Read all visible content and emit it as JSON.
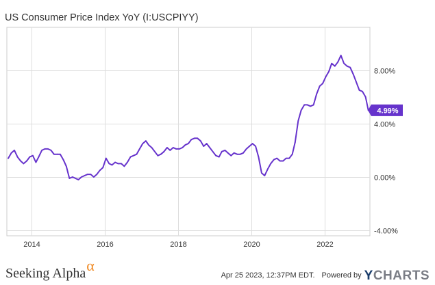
{
  "chart_data": {
    "type": "line",
    "title": "US Consumer Price Index YoY (I:USCPIYY)",
    "xlabel": "",
    "ylabel": "",
    "xlim": [
      "2013-05-01",
      "2023-03-31"
    ],
    "ylim": [
      -4.4,
      11.2
    ],
    "x_ticks": [
      "2014",
      "2016",
      "2018",
      "2020",
      "2022"
    ],
    "y_ticks": [
      {
        "value": -4,
        "label": "-4.00%"
      },
      {
        "value": 0,
        "label": "0.00%"
      },
      {
        "value": 4,
        "label": "4.00%"
      },
      {
        "value": 8,
        "label": "8.00%"
      }
    ],
    "grid": true,
    "line_color": "#6633cc",
    "last_value_label": "4.99%",
    "series": [
      {
        "name": "",
        "x": [
          "2013-05",
          "2013-06",
          "2013-07",
          "2013-08",
          "2013-09",
          "2013-10",
          "2013-11",
          "2013-12",
          "2014-01",
          "2014-02",
          "2014-03",
          "2014-04",
          "2014-05",
          "2014-06",
          "2014-07",
          "2014-08",
          "2014-09",
          "2014-10",
          "2014-11",
          "2014-12",
          "2015-01",
          "2015-02",
          "2015-03",
          "2015-04",
          "2015-05",
          "2015-06",
          "2015-07",
          "2015-08",
          "2015-09",
          "2015-10",
          "2015-11",
          "2015-12",
          "2016-01",
          "2016-02",
          "2016-03",
          "2016-04",
          "2016-05",
          "2016-06",
          "2016-07",
          "2016-08",
          "2016-09",
          "2016-10",
          "2016-11",
          "2016-12",
          "2017-01",
          "2017-02",
          "2017-03",
          "2017-04",
          "2017-05",
          "2017-06",
          "2017-07",
          "2017-08",
          "2017-09",
          "2017-10",
          "2017-11",
          "2017-12",
          "2018-01",
          "2018-02",
          "2018-03",
          "2018-04",
          "2018-05",
          "2018-06",
          "2018-07",
          "2018-08",
          "2018-09",
          "2018-10",
          "2018-11",
          "2018-12",
          "2019-01",
          "2019-02",
          "2019-03",
          "2019-04",
          "2019-05",
          "2019-06",
          "2019-07",
          "2019-08",
          "2019-09",
          "2019-10",
          "2019-11",
          "2019-12",
          "2020-01",
          "2020-02",
          "2020-03",
          "2020-04",
          "2020-05",
          "2020-06",
          "2020-07",
          "2020-08",
          "2020-09",
          "2020-10",
          "2020-11",
          "2020-12",
          "2021-01",
          "2021-02",
          "2021-03",
          "2021-04",
          "2021-05",
          "2021-06",
          "2021-07",
          "2021-08",
          "2021-09",
          "2021-10",
          "2021-11",
          "2021-12",
          "2022-01",
          "2022-02",
          "2022-03",
          "2022-04",
          "2022-05",
          "2022-06",
          "2022-07",
          "2022-08",
          "2022-09",
          "2022-10",
          "2022-11",
          "2022-12",
          "2023-01",
          "2023-02",
          "2023-03"
        ],
        "values": [
          1.4,
          1.8,
          2.0,
          1.5,
          1.2,
          1.0,
          1.2,
          1.5,
          1.6,
          1.1,
          1.5,
          2.0,
          2.1,
          2.1,
          2.0,
          1.7,
          1.7,
          1.7,
          1.3,
          0.8,
          -0.1,
          0.0,
          -0.1,
          -0.2,
          0.0,
          0.1,
          0.2,
          0.2,
          0.0,
          0.2,
          0.5,
          0.7,
          1.4,
          1.0,
          0.9,
          1.1,
          1.0,
          1.0,
          0.8,
          1.1,
          1.5,
          1.6,
          1.7,
          2.1,
          2.5,
          2.7,
          2.4,
          2.2,
          1.9,
          1.6,
          1.7,
          1.9,
          2.2,
          2.0,
          2.2,
          2.1,
          2.1,
          2.2,
          2.4,
          2.5,
          2.8,
          2.9,
          2.9,
          2.7,
          2.3,
          2.5,
          2.2,
          1.9,
          1.6,
          1.5,
          1.9,
          2.0,
          1.8,
          1.6,
          1.8,
          1.7,
          1.7,
          1.8,
          2.1,
          2.3,
          2.5,
          2.3,
          1.5,
          0.3,
          0.1,
          0.6,
          1.0,
          1.3,
          1.4,
          1.2,
          1.2,
          1.4,
          1.4,
          1.7,
          2.6,
          4.2,
          5.0,
          5.4,
          5.4,
          5.3,
          5.4,
          6.2,
          6.8,
          7.0,
          7.5,
          7.9,
          8.5,
          8.3,
          8.6,
          9.1,
          8.5,
          8.3,
          8.2,
          7.7,
          7.1,
          6.5,
          6.4,
          6.0,
          4.99
        ]
      }
    ]
  },
  "footer": {
    "brand_name": "Seeking Alpha",
    "brand_symbol": "α",
    "timestamp": "Apr 25 2023, 12:37PM EDT.",
    "powered_by": "Powered by",
    "ycharts_y": "Y",
    "ycharts_rest": "CHARTS"
  }
}
